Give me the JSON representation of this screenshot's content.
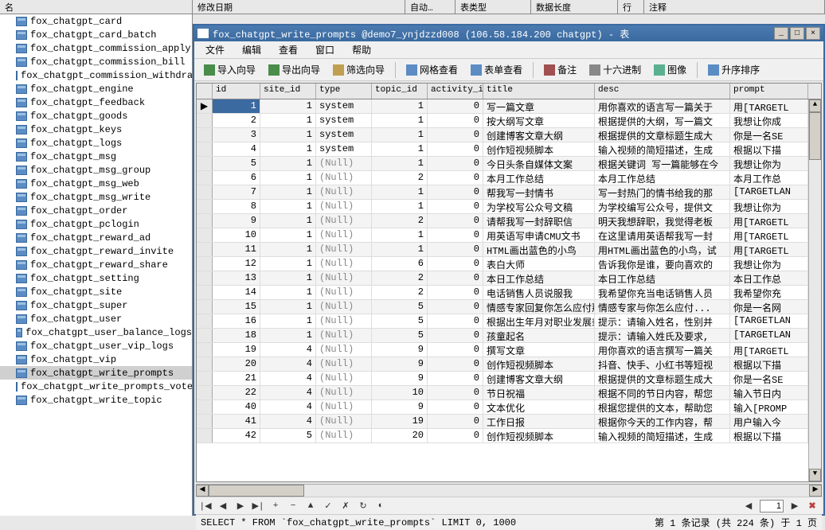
{
  "outer_headers": {
    "name": "名",
    "mod_date": "修改日期",
    "auto": "自动…",
    "table_type": "表类型",
    "data_len": "数据长度",
    "rows": "行",
    "comment": "注释"
  },
  "tree": {
    "items": [
      "fox_chatgpt_card",
      "fox_chatgpt_card_batch",
      "fox_chatgpt_commission_apply",
      "fox_chatgpt_commission_bill",
      "fox_chatgpt_commission_withdraw",
      "fox_chatgpt_engine",
      "fox_chatgpt_feedback",
      "fox_chatgpt_goods",
      "fox_chatgpt_keys",
      "fox_chatgpt_logs",
      "fox_chatgpt_msg",
      "fox_chatgpt_msg_group",
      "fox_chatgpt_msg_web",
      "fox_chatgpt_msg_write",
      "fox_chatgpt_order",
      "fox_chatgpt_pclogin",
      "fox_chatgpt_reward_ad",
      "fox_chatgpt_reward_invite",
      "fox_chatgpt_reward_share",
      "fox_chatgpt_setting",
      "fox_chatgpt_site",
      "fox_chatgpt_super",
      "fox_chatgpt_user",
      "fox_chatgpt_user_balance_logs",
      "fox_chatgpt_user_vip_logs",
      "fox_chatgpt_vip",
      "fox_chatgpt_write_prompts",
      "fox_chatgpt_write_prompts_vote",
      "fox_chatgpt_write_topic"
    ],
    "selected_index": 26
  },
  "window": {
    "title": "fox_chatgpt_write_prompts @demo7_ynjdzzd008 (106.58.184.200 chatgpt) - 表",
    "min": "_",
    "max": "□",
    "close": "×"
  },
  "menu": {
    "items": [
      "文件",
      "编辑",
      "查看",
      "窗口",
      "帮助"
    ]
  },
  "toolbar": {
    "import": "导入向导",
    "export": "导出向导",
    "filter": "筛选向导",
    "gridview": "网格查看",
    "formview": "表单查看",
    "memo": "备注",
    "hex": "十六进制",
    "image": "图像",
    "sort": "升序排序"
  },
  "grid": {
    "columns": [
      "id",
      "site_id",
      "type",
      "topic_id",
      "activity_id",
      "title",
      "desc",
      "prompt"
    ],
    "null_text": "(Null)",
    "current_row": 0,
    "rows": [
      {
        "id": 1,
        "site_id": 1,
        "type": "system",
        "topic_id": 1,
        "activity_id": 0,
        "title": "写一篇文章",
        "desc": "用你喜欢的语言写一篇关于",
        "prompt": "用[TARGETL"
      },
      {
        "id": 2,
        "site_id": 1,
        "type": "system",
        "topic_id": 1,
        "activity_id": 0,
        "title": "按大纲写文章",
        "desc": "根据提供的大纲，写一篇文",
        "prompt": "我想让你成"
      },
      {
        "id": 3,
        "site_id": 1,
        "type": "system",
        "topic_id": 1,
        "activity_id": 0,
        "title": "创建博客文章大纲",
        "desc": "根据提供的文章标题生成大",
        "prompt": "你是一名SE"
      },
      {
        "id": 4,
        "site_id": 1,
        "type": "system",
        "topic_id": 1,
        "activity_id": 0,
        "title": "创作短视频脚本",
        "desc": "输入视频的简短描述，生成",
        "prompt": "根据以下描"
      },
      {
        "id": 5,
        "site_id": 1,
        "type": null,
        "topic_id": 1,
        "activity_id": 0,
        "title": "今日头条自媒体文案",
        "desc": "根据关键词 写一篇能够在今",
        "prompt": "我想让你为"
      },
      {
        "id": 6,
        "site_id": 1,
        "type": null,
        "topic_id": 2,
        "activity_id": 0,
        "title": "本月工作总结",
        "desc": "本月工作总结",
        "prompt": "本月工作总"
      },
      {
        "id": 7,
        "site_id": 1,
        "type": null,
        "topic_id": 1,
        "activity_id": 0,
        "title": "帮我写一封情书",
        "desc": "写一封热门的情书给我的那",
        "prompt": "[TARGETLAN"
      },
      {
        "id": 8,
        "site_id": 1,
        "type": null,
        "topic_id": 1,
        "activity_id": 0,
        "title": "为学校写公众号文稿",
        "desc": "为学校编写公众号，提供文",
        "prompt": "我想让你为"
      },
      {
        "id": 9,
        "site_id": 1,
        "type": null,
        "topic_id": 2,
        "activity_id": 0,
        "title": "请帮我写一封辞职信",
        "desc": "明天我想辞职，我觉得老板",
        "prompt": "用[TARGETL"
      },
      {
        "id": 10,
        "site_id": 1,
        "type": null,
        "topic_id": 1,
        "activity_id": 0,
        "title": "用英语写申请CMU文书",
        "desc": "在这里请用英语帮我写一封",
        "prompt": "用[TARGETL"
      },
      {
        "id": 11,
        "site_id": 1,
        "type": null,
        "topic_id": 1,
        "activity_id": 0,
        "title": "HTML画出蓝色的小鸟",
        "desc": "用HTML画出蓝色的小鸟，试",
        "prompt": "用[TARGETL"
      },
      {
        "id": 12,
        "site_id": 1,
        "type": null,
        "topic_id": 6,
        "activity_id": 0,
        "title": "表白大师",
        "desc": "告诉我你是谁，要向喜欢的",
        "prompt": "我想让你为"
      },
      {
        "id": 13,
        "site_id": 1,
        "type": null,
        "topic_id": 2,
        "activity_id": 0,
        "title": "本日工作总结",
        "desc": "本日工作总结",
        "prompt": "本日工作总"
      },
      {
        "id": 14,
        "site_id": 1,
        "type": null,
        "topic_id": 2,
        "activity_id": 0,
        "title": "电话销售人员说服我",
        "desc": "我希望你充当电话销售人员",
        "prompt": "我希望你充"
      },
      {
        "id": 15,
        "site_id": 1,
        "type": null,
        "topic_id": 5,
        "activity_id": 0,
        "title": "情感专家回复你怎么应付那",
        "desc": "情感专家与你怎么应付...",
        "prompt": "你是一名网"
      },
      {
        "id": 16,
        "site_id": 1,
        "type": null,
        "topic_id": 5,
        "activity_id": 0,
        "title": "根据出生年月对职业发展或",
        "desc": "提示：请输入姓名，性别并",
        "prompt": "[TARGETLAN"
      },
      {
        "id": 18,
        "site_id": 1,
        "type": null,
        "topic_id": 5,
        "activity_id": 0,
        "title": "孩童起名",
        "desc": "提示：请输入姓氏及要求,",
        "prompt": "[TARGETLAN"
      },
      {
        "id": 19,
        "site_id": 4,
        "type": null,
        "topic_id": 9,
        "activity_id": 0,
        "title": "撰写文章",
        "desc": "用你喜欢的语言撰写一篇关",
        "prompt": "用[TARGETL"
      },
      {
        "id": 20,
        "site_id": 4,
        "type": null,
        "topic_id": 9,
        "activity_id": 0,
        "title": "创作短视频脚本",
        "desc": "抖音、快手、小红书等短视",
        "prompt": "根据以下描"
      },
      {
        "id": 21,
        "site_id": 4,
        "type": null,
        "topic_id": 9,
        "activity_id": 0,
        "title": "创建博客文章大纲",
        "desc": "根据提供的文章标题生成大",
        "prompt": "你是一名SE"
      },
      {
        "id": 22,
        "site_id": 4,
        "type": null,
        "topic_id": 10,
        "activity_id": 0,
        "title": "节日祝福",
        "desc": "根据不同的节日内容，帮您",
        "prompt": "输入节日内"
      },
      {
        "id": 40,
        "site_id": 4,
        "type": null,
        "topic_id": 9,
        "activity_id": 0,
        "title": "文本优化",
        "desc": "根据您提供的文本，帮助您",
        "prompt": "输入[PROMP"
      },
      {
        "id": 41,
        "site_id": 4,
        "type": null,
        "topic_id": 19,
        "activity_id": 0,
        "title": "工作日报",
        "desc": "根据你今天的工作内容，帮",
        "prompt": "用户输入今"
      },
      {
        "id": 42,
        "site_id": 5,
        "type": null,
        "topic_id": 20,
        "activity_id": 0,
        "title": "创作短视频脚本",
        "desc": "输入视频的简短描述，生成",
        "prompt": "根据以下描"
      }
    ]
  },
  "nav": {
    "first": "|◀",
    "prev": "◀",
    "next": "▶",
    "last": "▶|",
    "add": "+",
    "del": "−",
    "edit": "▲",
    "ok": "✓",
    "cancel": "✗",
    "refresh": "↻",
    "stop": "◐",
    "page": "1",
    "page_prev": "◀",
    "page_next": "▶",
    "x_icon": "✖"
  },
  "status": {
    "sql": "SELECT * FROM `fox_chatgpt_write_prompts` LIMIT 0, 1000",
    "record": "第 1 条记录 (共 224 条) 于 1 页"
  }
}
